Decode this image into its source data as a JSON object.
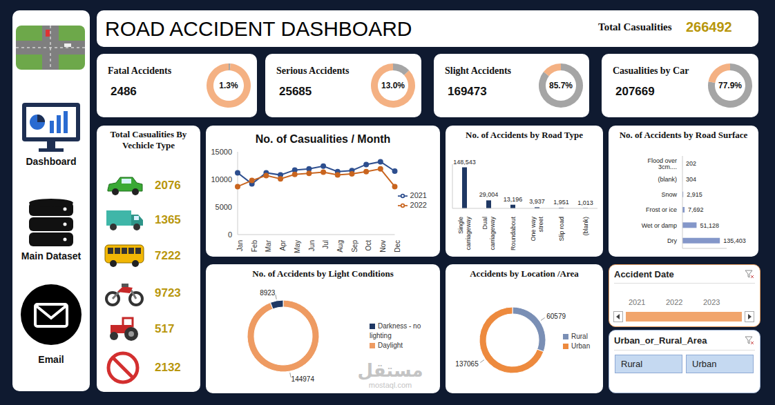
{
  "header": {
    "title": "ROAD ACCIDENT DASHBOARD",
    "total_label": "Total Casualities",
    "total_value": 266492
  },
  "sidebar": [
    "Dashboard",
    "Main Dataset",
    "Email"
  ],
  "kpis": [
    {
      "title": "Fatal Accidents",
      "value": 2486,
      "percent": 1.3,
      "percent_label": "1.3%"
    },
    {
      "title": "Serious Accidents",
      "value": 25685,
      "percent": 13.0,
      "percent_label": "13.0%"
    },
    {
      "title": "Slight Accidents",
      "value": 169473,
      "percent": 85.7,
      "percent_label": "85.7%"
    },
    {
      "title": "Casualities by Car",
      "value": 207669,
      "percent": 77.9,
      "percent_label": "77.9%"
    }
  ],
  "vehicle_panel": {
    "title": "Total Casualities By Vechicle Type",
    "values": [
      2076,
      1365,
      7222,
      9723,
      517,
      2132
    ]
  },
  "chart_data": [
    {
      "type": "line",
      "title": "No. of Casualities / Month",
      "categories": [
        "Jan",
        "Feb",
        "Mar",
        "Apr",
        "May",
        "Jun",
        "Jul",
        "Aug",
        "Sep",
        "Oct",
        "Nov",
        "Dec"
      ],
      "series": [
        {
          "name": "2021",
          "color": "#2e4f8f",
          "marker": "circle",
          "values": [
            11200,
            9200,
            11200,
            10800,
            11700,
            11900,
            12400,
            11400,
            11600,
            12700,
            13200,
            11500
          ]
        },
        {
          "name": "2022",
          "color": "#c9651f",
          "marker": "circle",
          "values": [
            8700,
            9800,
            10700,
            10100,
            10900,
            11100,
            11300,
            10800,
            11000,
            11400,
            11900,
            8700
          ]
        }
      ],
      "ylim": [
        0,
        15000
      ],
      "yticks": [
        0,
        5000,
        10000,
        15000
      ],
      "grid": false,
      "legend": "right"
    },
    {
      "type": "bar",
      "title": "No. of Accidents by Road Type",
      "categories": [
        "Single carriageway",
        "Dual carriageway",
        "Roundabout",
        "One way street",
        "Slip road",
        "(blank)"
      ],
      "values": [
        148543,
        29004,
        13196,
        3937,
        1951,
        1013
      ],
      "value_labels": [
        "148,543",
        "29,004",
        "13,196",
        "3,937",
        "1,951",
        "1,013"
      ],
      "color": "#1f3864",
      "ylim": [
        0,
        160000
      ],
      "tick_labels": "x",
      "data_labels": true
    },
    {
      "type": "bar",
      "orientation": "horizontal",
      "title": "No. of Accidents by Road Surface",
      "categories": [
        "Flood over 3cm....",
        "(blank)",
        "Snow",
        "Frost or ice",
        "Wet or damp",
        "Dry"
      ],
      "values": [
        202,
        304,
        2915,
        7692,
        51128,
        135403
      ],
      "value_labels": [
        "202",
        "304",
        "2,915",
        "7,692",
        "51,128",
        "135,403"
      ],
      "color": "#8497c9",
      "xlim": [
        0,
        160000
      ],
      "tick_labels": "y",
      "data_labels": true
    },
    {
      "type": "pie",
      "title": "No. of Accidents by Light Conditions",
      "categories": [
        "Daylight",
        "Darkness - no lighting"
      ],
      "values": [
        144974,
        8923
      ],
      "colors": [
        "#ee9b62",
        "#1f3864"
      ],
      "data_labels": true,
      "legend": "right"
    },
    {
      "type": "pie",
      "title": "Accidents by Location /Area",
      "categories": [
        "Rural",
        "Urban"
      ],
      "values": [
        60579,
        137065
      ],
      "colors": [
        "#7a8fb5",
        "#ed8a3e"
      ],
      "data_labels": true,
      "legend": "right"
    }
  ],
  "slicers": [
    {
      "title": "Accident Date",
      "items": [
        "2021",
        "2022",
        "2023"
      ]
    },
    {
      "title": "Urban_or_Rural_Area",
      "items": [
        "Rural",
        "Urban"
      ]
    }
  ],
  "watermark": [
    "مستقل",
    "mostaql.com"
  ]
}
